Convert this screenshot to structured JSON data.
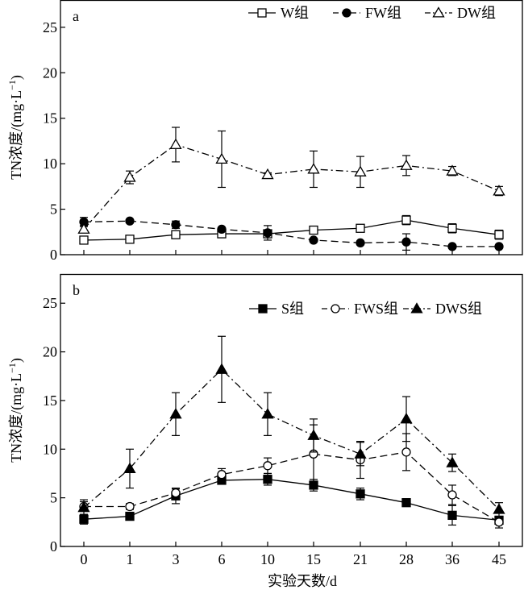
{
  "xlabel": "实验天数/d",
  "x_ticks": [
    "0",
    "1",
    "3",
    "6",
    "10",
    "15",
    "21",
    "28",
    "36",
    "45"
  ],
  "y_ticks": [
    "0",
    "5",
    "10",
    "15",
    "20",
    "25"
  ],
  "chart_data": [
    {
      "type": "line",
      "panel_label": "a",
      "ylabel": "TN浓度/(mg·L",
      "ylabel_sup": "−1",
      "ylabel_close": ")",
      "ylim": [
        0,
        28
      ],
      "categories": [
        "0",
        "1",
        "3",
        "6",
        "10",
        "15",
        "21",
        "28",
        "36",
        "45"
      ],
      "legend_position": "top-right",
      "series": [
        {
          "name": "W组",
          "marker": "square-open",
          "dash": "solid",
          "values": [
            1.6,
            1.7,
            2.2,
            2.3,
            2.3,
            2.7,
            2.9,
            3.8,
            2.9,
            2.2
          ],
          "errors": [
            0.2,
            0.2,
            0.2,
            0.3,
            0.3,
            0.2,
            0.2,
            0.5,
            0.5,
            0.5
          ]
        },
        {
          "name": "FW组",
          "marker": "circle-filled",
          "dash": "dashed",
          "values": [
            3.6,
            3.7,
            3.3,
            2.8,
            2.4,
            1.6,
            1.3,
            1.4,
            0.9,
            0.9
          ],
          "errors": [
            0.5,
            0.2,
            0.4,
            0.2,
            0.8,
            0.2,
            0.2,
            0.9,
            0.2,
            0.2
          ]
        },
        {
          "name": "DW组",
          "marker": "triangle-open",
          "dash": "dashdot",
          "values": [
            2.8,
            8.5,
            12.1,
            10.5,
            8.8,
            9.4,
            9.1,
            9.8,
            9.2,
            7.0
          ],
          "errors": [
            0.4,
            0.7,
            1.9,
            3.1,
            0.2,
            2.0,
            1.7,
            1.1,
            0.5,
            0.5
          ]
        }
      ]
    },
    {
      "type": "line",
      "panel_label": "b",
      "ylabel": "TN浓度/(mg·L",
      "ylabel_sup": "−1",
      "ylabel_close": ")",
      "ylim": [
        0,
        28
      ],
      "categories": [
        "0",
        "1",
        "3",
        "6",
        "10",
        "15",
        "21",
        "28",
        "36",
        "45"
      ],
      "legend_position": "top-right",
      "series": [
        {
          "name": "S组",
          "marker": "square-filled",
          "dash": "solid",
          "values": [
            2.8,
            3.1,
            5.2,
            6.8,
            6.9,
            6.3,
            5.4,
            4.5,
            3.2,
            2.7
          ],
          "errors": [
            0.5,
            0.3,
            0.8,
            0.3,
            0.6,
            0.6,
            0.6,
            0.2,
            1.0,
            0.3
          ]
        },
        {
          "name": "FWS组",
          "marker": "circle-open",
          "dash": "dashed",
          "values": [
            4.1,
            4.1,
            5.5,
            7.4,
            8.3,
            9.5,
            8.9,
            9.7,
            5.3,
            2.5
          ],
          "errors": [
            0.5,
            0.3,
            0.4,
            0.6,
            0.8,
            3.0,
            1.9,
            1.9,
            1.0,
            0.6
          ]
        },
        {
          "name": "DWS组",
          "marker": "triangle-filled",
          "dash": "dashdot",
          "values": [
            4.0,
            8.0,
            13.6,
            18.2,
            13.6,
            11.4,
            9.5,
            13.1,
            8.6,
            3.8
          ],
          "errors": [
            0.8,
            2.0,
            2.2,
            3.4,
            2.2,
            1.7,
            1.2,
            2.3,
            0.9,
            0.7
          ]
        }
      ]
    }
  ]
}
